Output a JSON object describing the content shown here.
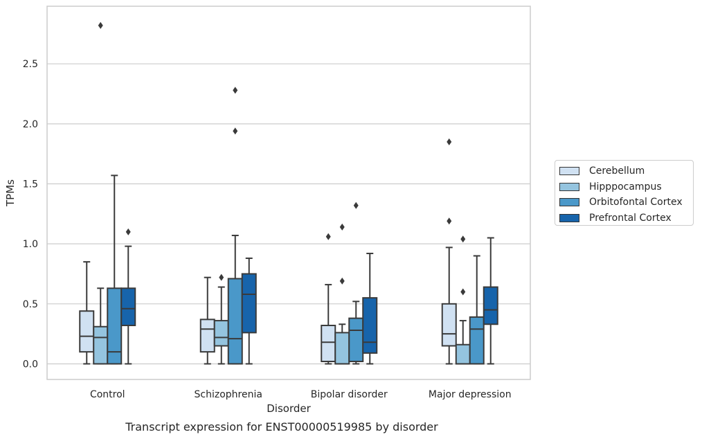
{
  "chart_data": {
    "type": "box",
    "caption": "Transcript expression for ENST00000519985 by disorder",
    "xlabel": "Disorder",
    "ylabel": "TPMs",
    "ylim": [
      -0.13,
      2.98
    ],
    "yticks": [
      0.0,
      0.5,
      1.0,
      1.5,
      2.0,
      2.5
    ],
    "grid": "horizontal",
    "legend_position": "right",
    "categories": [
      "Control",
      "Schizophrenia",
      "Bipolar disorder",
      "Major depression"
    ],
    "series": [
      {
        "name": "Cerebellum",
        "color": "#d0e1f2",
        "boxes": [
          {
            "whisker_low": 0.0,
            "q1": 0.1,
            "median": 0.23,
            "q3": 0.44,
            "whisker_high": 0.85,
            "outliers": []
          },
          {
            "whisker_low": 0.0,
            "q1": 0.1,
            "median": 0.29,
            "q3": 0.37,
            "whisker_high": 0.72,
            "outliers": []
          },
          {
            "whisker_low": 0.0,
            "q1": 0.02,
            "median": 0.18,
            "q3": 0.32,
            "whisker_high": 0.66,
            "outliers": [
              1.06
            ]
          },
          {
            "whisker_low": 0.0,
            "q1": 0.15,
            "median": 0.25,
            "q3": 0.5,
            "whisker_high": 0.97,
            "outliers": [
              1.19,
              1.85
            ]
          }
        ]
      },
      {
        "name": "Hipppocampus",
        "color": "#94c4df",
        "boxes": [
          {
            "whisker_low": 0.0,
            "q1": 0.0,
            "median": 0.22,
            "q3": 0.31,
            "whisker_high": 0.63,
            "outliers": [
              2.82
            ]
          },
          {
            "whisker_low": 0.0,
            "q1": 0.15,
            "median": 0.22,
            "q3": 0.36,
            "whisker_high": 0.64,
            "outliers": [
              0.72
            ]
          },
          {
            "whisker_low": 0.0,
            "q1": 0.0,
            "median": 0.0,
            "q3": 0.26,
            "whisker_high": 0.33,
            "outliers": [
              0.69,
              1.14
            ]
          },
          {
            "whisker_low": 0.0,
            "q1": 0.0,
            "median": 0.0,
            "q3": 0.16,
            "whisker_high": 0.36,
            "outliers": [
              0.6,
              1.04
            ]
          }
        ]
      },
      {
        "name": "Orbitofontal Cortex",
        "color": "#4a98c9",
        "boxes": [
          {
            "whisker_low": 0.0,
            "q1": 0.0,
            "median": 0.1,
            "q3": 0.63,
            "whisker_high": 1.57,
            "outliers": []
          },
          {
            "whisker_low": 0.0,
            "q1": 0.0,
            "median": 0.21,
            "q3": 0.71,
            "whisker_high": 1.07,
            "outliers": [
              1.94,
              2.28
            ]
          },
          {
            "whisker_low": 0.0,
            "q1": 0.02,
            "median": 0.28,
            "q3": 0.38,
            "whisker_high": 0.52,
            "outliers": [
              1.32
            ]
          },
          {
            "whisker_low": 0.0,
            "q1": 0.0,
            "median": 0.29,
            "q3": 0.39,
            "whisker_high": 0.9,
            "outliers": []
          }
        ]
      },
      {
        "name": "Prefrontal Cortex",
        "color": "#1764ab",
        "boxes": [
          {
            "whisker_low": 0.0,
            "q1": 0.32,
            "median": 0.46,
            "q3": 0.63,
            "whisker_high": 0.98,
            "outliers": [
              1.1
            ]
          },
          {
            "whisker_low": 0.0,
            "q1": 0.26,
            "median": 0.58,
            "q3": 0.75,
            "whisker_high": 0.88,
            "outliers": []
          },
          {
            "whisker_low": 0.0,
            "q1": 0.09,
            "median": 0.18,
            "q3": 0.55,
            "whisker_high": 0.92,
            "outliers": []
          },
          {
            "whisker_low": 0.0,
            "q1": 0.33,
            "median": 0.45,
            "q3": 0.64,
            "whisker_high": 1.05,
            "outliers": []
          }
        ]
      }
    ]
  }
}
